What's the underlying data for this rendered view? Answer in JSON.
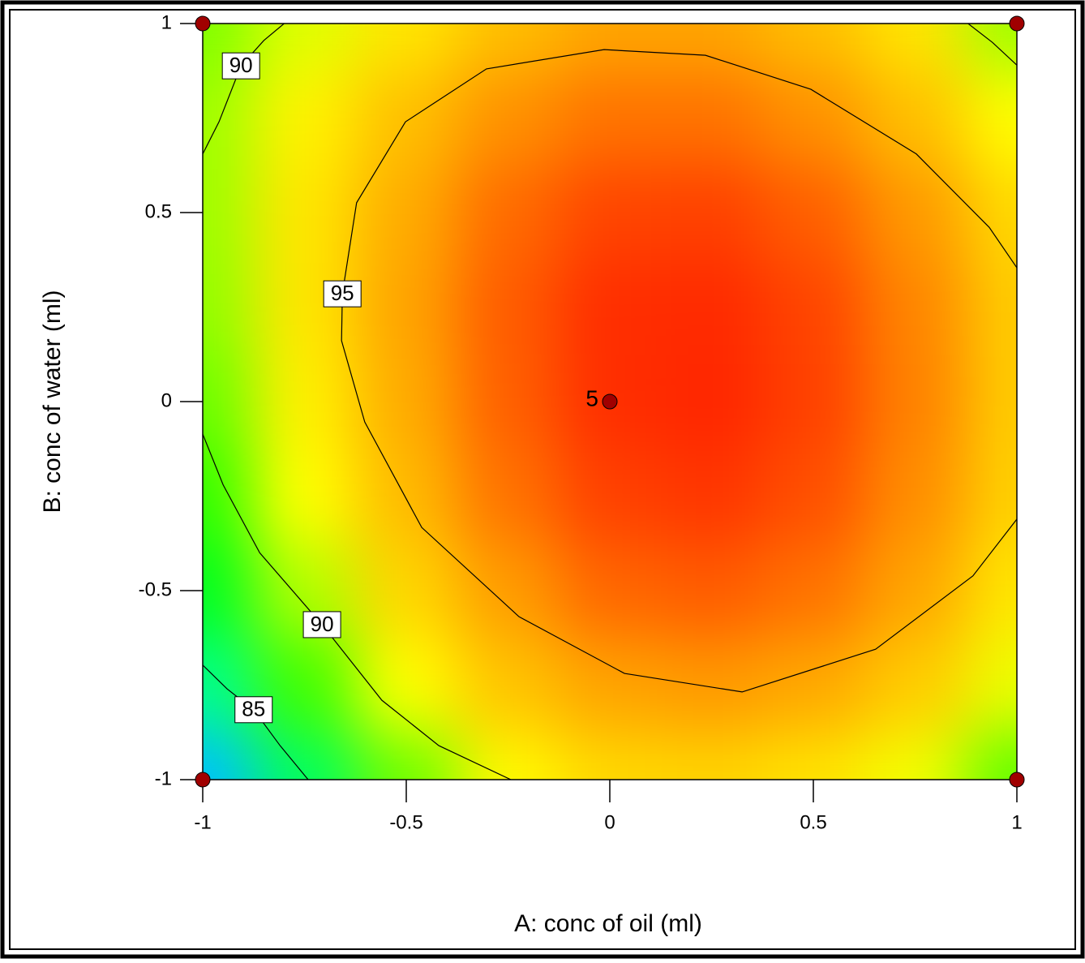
{
  "chart_data": {
    "type": "contour",
    "xlabel": "A: conc of oil  (ml)",
    "ylabel": "B: conc of water (ml)",
    "xlim": [
      -1,
      1
    ],
    "ylim": [
      -1,
      1
    ],
    "xticks": [
      -1,
      -0.5,
      0,
      0.5,
      1
    ],
    "yticks": [
      -1,
      -0.5,
      0,
      0.5,
      1
    ],
    "x": [
      -1,
      -0.75,
      -0.5,
      -0.25,
      0,
      0.25,
      0.5,
      0.75,
      1
    ],
    "y": [
      1,
      0.75,
      0.5,
      0.25,
      0,
      -0.25,
      -0.5,
      -0.75,
      -1
    ],
    "z": [
      [
        89,
        90.5,
        92,
        93.5,
        94.5,
        94.5,
        93.5,
        92,
        89.5
      ],
      [
        89.5,
        91.5,
        93.5,
        95.2,
        96,
        96,
        95.2,
        93.5,
        91
      ],
      [
        89.5,
        92,
        94.3,
        96.2,
        97.2,
        97.3,
        96.5,
        95,
        92.5
      ],
      [
        89.3,
        92,
        94.6,
        96.6,
        97.8,
        97.9,
        97.2,
        95.5,
        93
      ],
      [
        88.7,
        91.6,
        94.3,
        96.5,
        97.8,
        98,
        97.3,
        95.6,
        93
      ],
      [
        87.8,
        91,
        93.7,
        96,
        97.3,
        97.6,
        96.9,
        95.3,
        92.8
      ],
      [
        86.5,
        89.8,
        92.6,
        94.9,
        96.3,
        96.6,
        96,
        94.5,
        92
      ],
      [
        84.8,
        88,
        91,
        93.3,
        94.6,
        95,
        94.4,
        93,
        90.7
      ],
      [
        82,
        85.5,
        88.7,
        91.2,
        92.5,
        92.7,
        92.1,
        90.8,
        88.5
      ]
    ],
    "zlim": [
      79,
      99
    ],
    "colors": [
      "#0000ff",
      "#00ffff",
      "#00ff00",
      "#ffff00",
      "#ff9900",
      "#ff0000"
    ],
    "contours": [
      {
        "level": 95,
        "show_label": true,
        "x": [
          1.0,
          0.892,
          0.653,
          0.325,
          0.036,
          -0.223,
          -0.462,
          -0.602,
          -0.659,
          -0.657,
          -0.622,
          -0.502,
          -0.303,
          -0.014,
          0.235,
          0.494,
          0.753,
          0.932,
          1.0
        ],
        "y": [
          -0.311,
          -0.461,
          -0.655,
          -0.768,
          -0.719,
          -0.569,
          -0.333,
          -0.054,
          0.161,
          0.285,
          0.526,
          0.74,
          0.88,
          0.931,
          0.916,
          0.826,
          0.655,
          0.461,
          0.354
        ]
      },
      {
        "level": 90,
        "show_label": true,
        "x": [
          -1,
          -0.96,
          -0.906,
          -0.85,
          -0.8
        ],
        "y": [
          0.655,
          0.74,
          0.888,
          0.955,
          1
        ]
      },
      {
        "level": 90,
        "show_label": true,
        "x": [
          -1,
          -0.95,
          -0.86,
          -0.707,
          -0.56,
          -0.42,
          -0.243
        ],
        "y": [
          -0.086,
          -0.22,
          -0.4,
          -0.59,
          -0.79,
          -0.91,
          -1
        ]
      },
      {
        "level": 85,
        "show_label": true,
        "x": [
          -1,
          -0.94,
          -0.875,
          -0.81,
          -0.741
        ],
        "y": [
          -0.697,
          -0.76,
          -0.815,
          -0.91,
          -1
        ]
      },
      {
        "level": 90,
        "show_label": false,
        "x": [
          0.88,
          0.94,
          1
        ],
        "y": [
          1,
          0.95,
          0.89
        ]
      }
    ],
    "design_points": {
      "x": [
        -1,
        1,
        -1,
        1,
        0
      ],
      "y": [
        1,
        1,
        -1,
        -1,
        0
      ],
      "color": "#a00000"
    },
    "center_points": 5
  }
}
